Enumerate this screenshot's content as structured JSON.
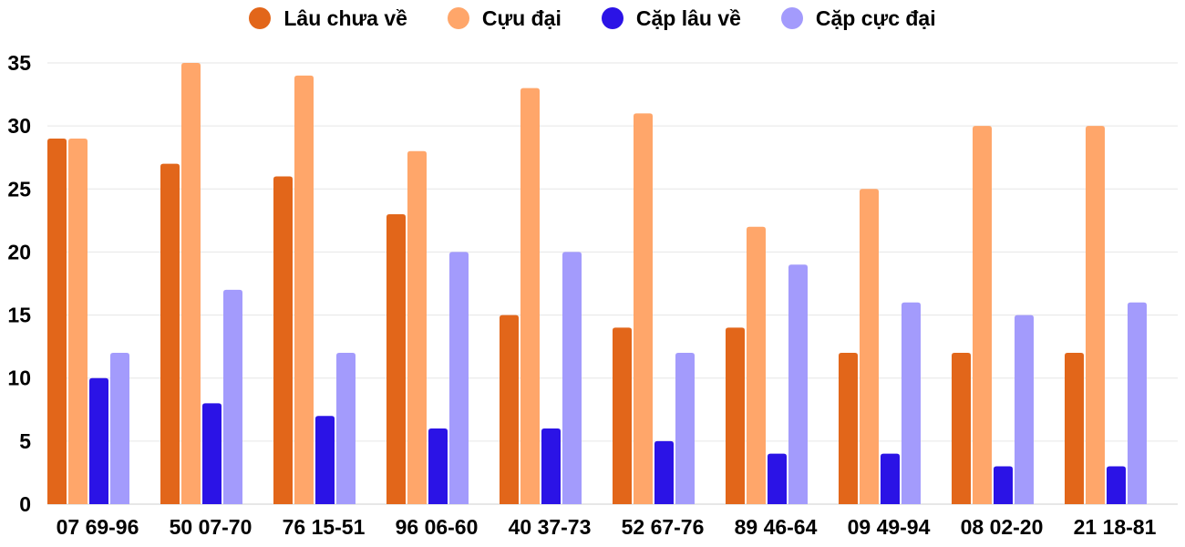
{
  "chart_data": {
    "type": "bar",
    "categories": [
      "07 69-96",
      "50 07-70",
      "76 15-51",
      "96 06-60",
      "40 37-73",
      "52 67-76",
      "89 46-64",
      "09 49-94",
      "08 02-20",
      "21 18-81"
    ],
    "series": [
      {
        "name": "Lâu chưa về",
        "color": "#e2661a",
        "values": [
          29,
          27,
          26,
          23,
          15,
          14,
          14,
          12,
          12,
          12
        ]
      },
      {
        "name": "Cựu đại",
        "color": "#ffa66a",
        "values": [
          29,
          35,
          34,
          28,
          33,
          31,
          22,
          25,
          30,
          30
        ]
      },
      {
        "name": "Cặp lâu về",
        "color": "#2b13e6",
        "values": [
          10,
          8,
          7,
          6,
          6,
          5,
          4,
          4,
          3,
          3
        ]
      },
      {
        "name": "Cặp cực đại",
        "color": "#a39bfc",
        "values": [
          12,
          17,
          12,
          20,
          20,
          12,
          19,
          16,
          15,
          16
        ]
      }
    ],
    "ylim": [
      0,
      35
    ],
    "yticks": [
      0,
      5,
      10,
      15,
      20,
      25,
      30,
      35
    ],
    "grid": true,
    "legend_position": "top-center"
  }
}
